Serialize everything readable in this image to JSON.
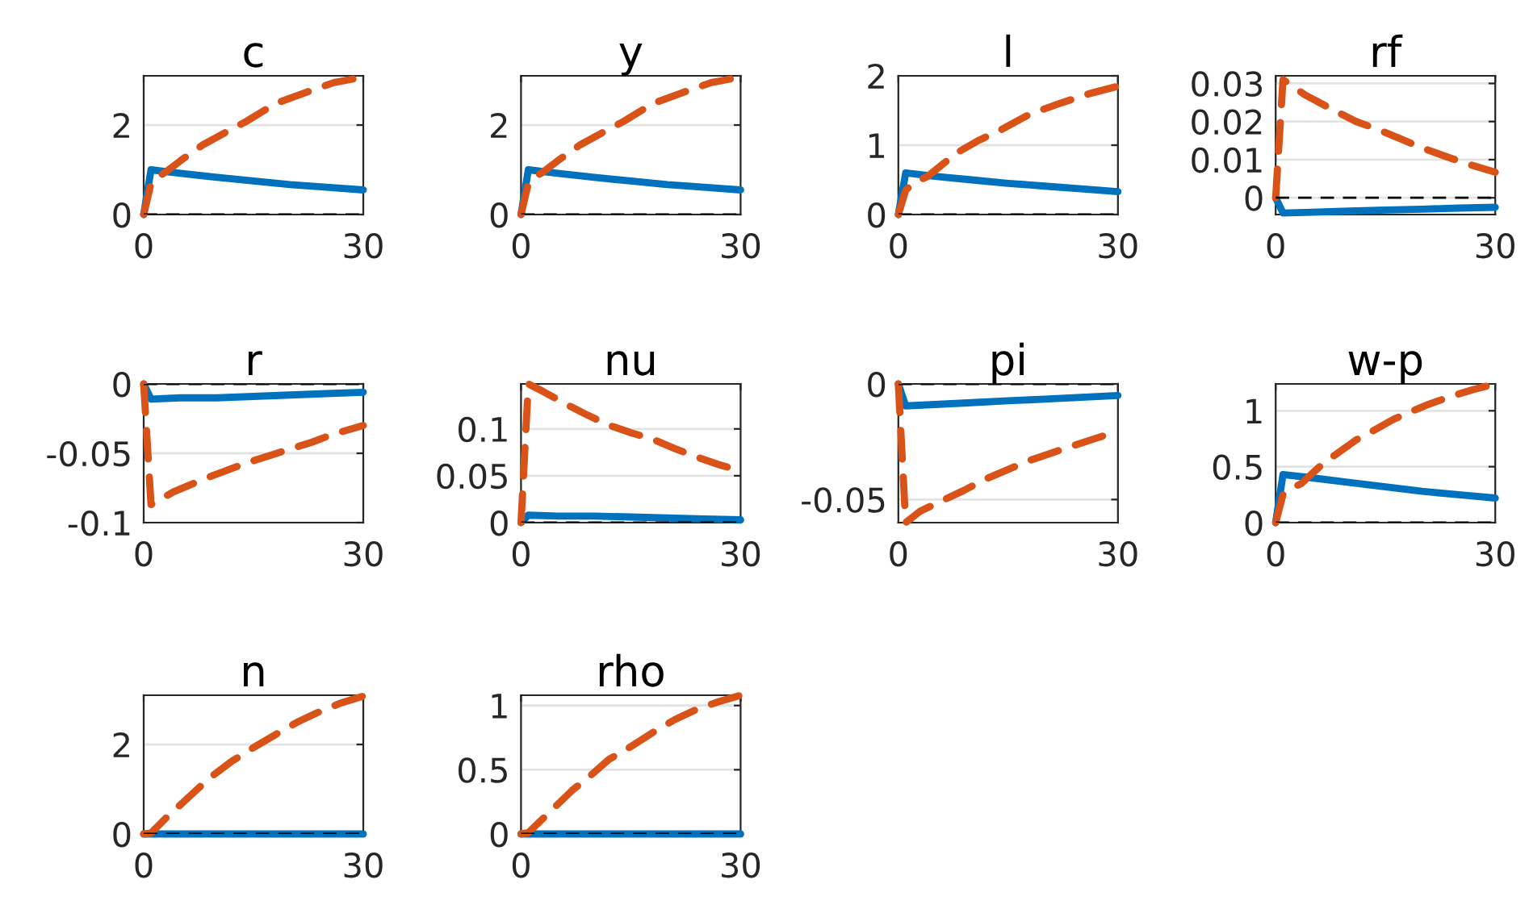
{
  "chart_data": [
    {
      "type": "line",
      "title": "c",
      "xlim": [
        0,
        30
      ],
      "xticks": [
        0,
        30
      ],
      "ylim": [
        0,
        3.1
      ],
      "yticks": [
        0,
        2
      ],
      "grid": "y",
      "ref_lines": [
        {
          "axis": "y",
          "value": 0,
          "color": "#000000",
          "line_style": "dashed"
        }
      ],
      "series": [
        {
          "color": "#0072bd",
          "line_style": "solid",
          "x": [
            0,
            1,
            5,
            10,
            15,
            20,
            25,
            30
          ],
          "values": [
            0,
            1.0,
            0.92,
            0.83,
            0.75,
            0.67,
            0.61,
            0.55
          ]
        },
        {
          "color": "#d95319",
          "line_style": "dashed",
          "x": [
            0,
            1,
            2,
            3,
            5,
            8,
            11,
            14,
            18,
            22,
            26,
            30
          ],
          "values": [
            0,
            0.7,
            0.85,
            0.95,
            1.2,
            1.55,
            1.82,
            2.08,
            2.48,
            2.72,
            2.95,
            3.07
          ]
        }
      ]
    },
    {
      "type": "line",
      "title": "y",
      "xlim": [
        0,
        30
      ],
      "xticks": [
        0,
        30
      ],
      "ylim": [
        0,
        3.1
      ],
      "yticks": [
        0,
        2
      ],
      "grid": "y",
      "ref_lines": [
        {
          "axis": "y",
          "value": 0,
          "color": "#000000",
          "line_style": "dashed"
        }
      ],
      "series": [
        {
          "color": "#0072bd",
          "line_style": "solid",
          "x": [
            0,
            1,
            5,
            10,
            15,
            20,
            25,
            30
          ],
          "values": [
            0,
            1.0,
            0.92,
            0.83,
            0.75,
            0.67,
            0.61,
            0.55
          ]
        },
        {
          "color": "#d95319",
          "line_style": "dashed",
          "x": [
            0,
            1,
            2,
            3,
            5,
            8,
            11,
            14,
            18,
            22,
            26,
            30
          ],
          "values": [
            0,
            0.7,
            0.85,
            0.95,
            1.2,
            1.55,
            1.82,
            2.08,
            2.48,
            2.72,
            2.95,
            3.07
          ]
        }
      ]
    },
    {
      "type": "line",
      "title": "l",
      "xlim": [
        0,
        30
      ],
      "xticks": [
        0,
        30
      ],
      "ylim": [
        0,
        2
      ],
      "yticks": [
        0,
        1,
        2
      ],
      "grid": "y",
      "ref_lines": [
        {
          "axis": "y",
          "value": 0,
          "color": "#000000",
          "line_style": "dashed"
        }
      ],
      "series": [
        {
          "color": "#0072bd",
          "line_style": "solid",
          "x": [
            0,
            1,
            5,
            10,
            15,
            20,
            25,
            30
          ],
          "values": [
            0,
            0.6,
            0.55,
            0.5,
            0.45,
            0.41,
            0.37,
            0.33
          ]
        },
        {
          "color": "#d95319",
          "line_style": "dashed",
          "x": [
            0,
            1,
            2,
            4,
            6,
            8,
            11,
            14,
            18,
            22,
            26,
            30
          ],
          "values": [
            0,
            0.35,
            0.45,
            0.55,
            0.72,
            0.89,
            1.07,
            1.22,
            1.45,
            1.6,
            1.74,
            1.85
          ]
        }
      ]
    },
    {
      "type": "line",
      "title": "rf",
      "xlim": [
        0,
        30
      ],
      "xticks": [
        0,
        30
      ],
      "ylim": [
        -0.0044,
        0.032
      ],
      "yticks": [
        0,
        0.01,
        0.02,
        0.03
      ],
      "grid": "y",
      "ref_lines": [
        {
          "axis": "y",
          "value": 0,
          "color": "#000000",
          "line_style": "dashed"
        }
      ],
      "series": [
        {
          "color": "#0072bd",
          "line_style": "solid",
          "x": [
            0,
            1,
            5,
            10,
            15,
            20,
            25,
            30
          ],
          "values": [
            0,
            -0.004,
            -0.0038,
            -0.0035,
            -0.0032,
            -0.003,
            -0.0027,
            -0.0025
          ]
        },
        {
          "color": "#d95319",
          "line_style": "dashed",
          "x": [
            0,
            1,
            4,
            8,
            11,
            14,
            17,
            20,
            23,
            26,
            30
          ],
          "values": [
            0,
            0.031,
            0.027,
            0.0229,
            0.02,
            0.0179,
            0.0155,
            0.0131,
            0.011,
            0.009,
            0.0067
          ]
        }
      ]
    },
    {
      "type": "line",
      "title": "r",
      "xlim": [
        0,
        30
      ],
      "xticks": [
        0,
        30
      ],
      "ylim": [
        -0.1,
        0
      ],
      "yticks": [
        -0.1,
        -0.05,
        0
      ],
      "grid": "y",
      "ref_lines": [
        {
          "axis": "y",
          "value": 0,
          "color": "#000000",
          "line_style": "dashed"
        }
      ],
      "series": [
        {
          "color": "#0072bd",
          "line_style": "solid",
          "x": [
            0,
            1,
            5,
            10,
            15,
            20,
            25,
            30
          ],
          "values": [
            0,
            -0.011,
            -0.01,
            -0.01,
            -0.009,
            -0.008,
            -0.007,
            -0.006
          ]
        },
        {
          "color": "#d95319",
          "line_style": "dashed",
          "x": [
            0,
            1,
            4,
            8,
            11,
            14,
            17,
            20,
            23,
            26,
            30
          ],
          "values": [
            0,
            -0.087,
            -0.078,
            -0.069,
            -0.063,
            -0.057,
            -0.052,
            -0.047,
            -0.042,
            -0.036,
            -0.03
          ]
        }
      ]
    },
    {
      "type": "line",
      "title": "nu",
      "xlim": [
        0,
        30
      ],
      "xticks": [
        0,
        30
      ],
      "ylim": [
        0,
        0.148
      ],
      "yticks": [
        0,
        0.05,
        0.1
      ],
      "grid": "y",
      "ref_lines": [
        {
          "axis": "y",
          "value": 0,
          "color": "#000000",
          "line_style": "dashed"
        }
      ],
      "series": [
        {
          "color": "#0072bd",
          "line_style": "solid",
          "x": [
            0,
            1,
            5,
            10,
            15,
            20,
            25,
            30
          ],
          "values": [
            0,
            0.008,
            0.007,
            0.007,
            0.006,
            0.005,
            0.004,
            0.003
          ]
        },
        {
          "color": "#d95319",
          "line_style": "dashed",
          "x": [
            0,
            1,
            3,
            6,
            9,
            12,
            15,
            18,
            21,
            24,
            27,
            30
          ],
          "values": [
            0,
            0.148,
            0.14,
            0.127,
            0.115,
            0.104,
            0.096,
            0.089,
            0.079,
            0.07,
            0.062,
            0.055
          ]
        }
      ]
    },
    {
      "type": "line",
      "title": "pi",
      "xlim": [
        0,
        30
      ],
      "xticks": [
        0,
        30
      ],
      "ylim": [
        -0.06,
        0
      ],
      "yticks": [
        -0.05,
        0
      ],
      "grid": "y",
      "ref_lines": [
        {
          "axis": "y",
          "value": 0,
          "color": "#000000",
          "line_style": "dashed"
        }
      ],
      "series": [
        {
          "color": "#0072bd",
          "line_style": "solid",
          "x": [
            0,
            1,
            5,
            10,
            15,
            20,
            25,
            30
          ],
          "values": [
            0,
            -0.0095,
            -0.0089,
            -0.0081,
            -0.0073,
            -0.0066,
            -0.0058,
            -0.005
          ]
        },
        {
          "color": "#d95319",
          "line_style": "dashed",
          "x": [
            0,
            1,
            3,
            6,
            9,
            12,
            15,
            18,
            21,
            24,
            27,
            30
          ],
          "values": [
            0,
            -0.06,
            -0.055,
            -0.0505,
            -0.046,
            -0.041,
            -0.037,
            -0.033,
            -0.0298,
            -0.0266,
            -0.0235,
            -0.0205
          ]
        }
      ]
    },
    {
      "type": "line",
      "title": "w-p",
      "xlim": [
        0,
        30
      ],
      "xticks": [
        0,
        30
      ],
      "ylim": [
        0,
        1.24
      ],
      "yticks": [
        0,
        0.5,
        1
      ],
      "grid": "y",
      "ref_lines": [
        {
          "axis": "y",
          "value": 0,
          "color": "#000000",
          "line_style": "dashed"
        }
      ],
      "series": [
        {
          "color": "#0072bd",
          "line_style": "solid",
          "x": [
            0,
            1,
            5,
            10,
            15,
            20,
            25,
            30
          ],
          "values": [
            0,
            0.43,
            0.4,
            0.36,
            0.32,
            0.28,
            0.25,
            0.22
          ]
        },
        {
          "color": "#d95319",
          "line_style": "dashed",
          "x": [
            0,
            1,
            2,
            3.5,
            6,
            8,
            11,
            13,
            16,
            18,
            21,
            24,
            27,
            30
          ],
          "values": [
            0,
            0.25,
            0.3,
            0.35,
            0.5,
            0.6,
            0.74,
            0.81,
            0.92,
            0.98,
            1.06,
            1.13,
            1.19,
            1.24
          ]
        }
      ]
    },
    {
      "type": "line",
      "title": "n",
      "xlim": [
        0,
        30
      ],
      "xticks": [
        0,
        30
      ],
      "ylim": [
        0,
        3.1
      ],
      "yticks": [
        0,
        2
      ],
      "grid": "y",
      "ref_lines": [
        {
          "axis": "y",
          "value": 0,
          "color": "#000000",
          "line_style": "dashed"
        }
      ],
      "series": [
        {
          "color": "#0072bd",
          "line_style": "solid",
          "x": [
            0,
            30
          ],
          "values": [
            0,
            0
          ]
        },
        {
          "color": "#d95319",
          "line_style": "dashed",
          "x": [
            0,
            1,
            3,
            5,
            7,
            9,
            12,
            15,
            18,
            21,
            24,
            27,
            30
          ],
          "values": [
            0,
            0.02,
            0.35,
            0.65,
            0.95,
            1.25,
            1.62,
            1.93,
            2.22,
            2.5,
            2.73,
            2.93,
            3.08
          ]
        }
      ]
    },
    {
      "type": "line",
      "title": "rho",
      "xlim": [
        0,
        30
      ],
      "xticks": [
        0,
        30
      ],
      "ylim": [
        0,
        1.08
      ],
      "yticks": [
        0,
        0.5,
        1
      ],
      "grid": "y",
      "ref_lines": [
        {
          "axis": "y",
          "value": 0,
          "color": "#000000",
          "line_style": "dashed"
        }
      ],
      "series": [
        {
          "color": "#0072bd",
          "line_style": "solid",
          "x": [
            0,
            30
          ],
          "values": [
            0,
            0
          ]
        },
        {
          "color": "#d95319",
          "line_style": "dashed",
          "x": [
            0,
            1,
            3,
            5,
            7,
            9,
            12,
            15,
            18,
            21,
            24,
            27,
            30
          ],
          "values": [
            0,
            0.01,
            0.12,
            0.23,
            0.34,
            0.43,
            0.58,
            0.68,
            0.79,
            0.89,
            0.97,
            1.03,
            1.08
          ]
        }
      ]
    }
  ]
}
